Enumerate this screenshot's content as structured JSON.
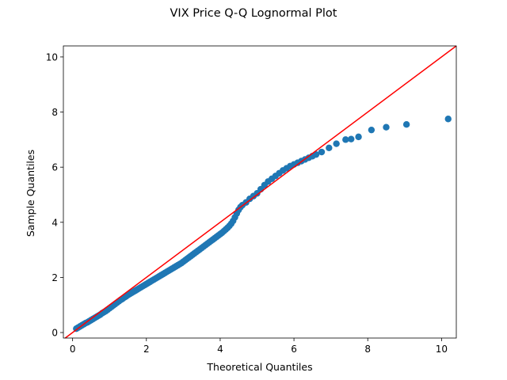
{
  "chart_data": {
    "type": "scatter",
    "title": "VIX Price Q-Q Lognormal Plot",
    "xlabel": "Theoretical Quantiles",
    "ylabel": "Sample Quantiles",
    "xlim": [
      -0.25,
      10.4
    ],
    "ylim": [
      -0.2,
      10.4
    ],
    "xticks": [
      0,
      2,
      4,
      6,
      8,
      10
    ],
    "yticks": [
      0,
      2,
      4,
      6,
      8,
      10
    ],
    "grid": false,
    "legend": "none",
    "reference_line": {
      "slope": 1,
      "intercept": 0,
      "color": "#ff0000"
    },
    "series": [
      {
        "color": "#1f77b4",
        "points": [
          [
            0.1,
            0.14
          ],
          [
            0.15,
            0.18
          ],
          [
            0.2,
            0.22
          ],
          [
            0.25,
            0.26
          ],
          [
            0.3,
            0.3
          ],
          [
            0.35,
            0.34
          ],
          [
            0.4,
            0.37
          ],
          [
            0.45,
            0.41
          ],
          [
            0.5,
            0.45
          ],
          [
            0.55,
            0.49
          ],
          [
            0.6,
            0.53
          ],
          [
            0.65,
            0.57
          ],
          [
            0.7,
            0.61
          ],
          [
            0.75,
            0.65
          ],
          [
            0.8,
            0.7
          ],
          [
            0.85,
            0.74
          ],
          [
            0.9,
            0.78
          ],
          [
            0.95,
            0.83
          ],
          [
            1.0,
            0.88
          ],
          [
            1.05,
            0.93
          ],
          [
            1.1,
            0.98
          ],
          [
            1.15,
            1.03
          ],
          [
            1.2,
            1.08
          ],
          [
            1.25,
            1.13
          ],
          [
            1.3,
            1.18
          ],
          [
            1.35,
            1.22
          ],
          [
            1.4,
            1.27
          ],
          [
            1.45,
            1.31
          ],
          [
            1.5,
            1.36
          ],
          [
            1.55,
            1.4
          ],
          [
            1.6,
            1.44
          ],
          [
            1.65,
            1.48
          ],
          [
            1.7,
            1.52
          ],
          [
            1.75,
            1.56
          ],
          [
            1.8,
            1.6
          ],
          [
            1.85,
            1.64
          ],
          [
            1.9,
            1.68
          ],
          [
            1.95,
            1.72
          ],
          [
            2.0,
            1.76
          ],
          [
            2.05,
            1.8
          ],
          [
            2.1,
            1.84
          ],
          [
            2.15,
            1.88
          ],
          [
            2.2,
            1.92
          ],
          [
            2.25,
            1.96
          ],
          [
            2.3,
            2.0
          ],
          [
            2.35,
            2.04
          ],
          [
            2.4,
            2.08
          ],
          [
            2.45,
            2.12
          ],
          [
            2.5,
            2.16
          ],
          [
            2.55,
            2.2
          ],
          [
            2.6,
            2.24
          ],
          [
            2.65,
            2.28
          ],
          [
            2.7,
            2.32
          ],
          [
            2.75,
            2.36
          ],
          [
            2.8,
            2.4
          ],
          [
            2.85,
            2.44
          ],
          [
            2.9,
            2.48
          ],
          [
            2.95,
            2.52
          ],
          [
            3.0,
            2.57
          ],
          [
            3.05,
            2.62
          ],
          [
            3.1,
            2.67
          ],
          [
            3.15,
            2.72
          ],
          [
            3.2,
            2.77
          ],
          [
            3.25,
            2.82
          ],
          [
            3.3,
            2.87
          ],
          [
            3.35,
            2.92
          ],
          [
            3.4,
            2.97
          ],
          [
            3.45,
            3.02
          ],
          [
            3.5,
            3.07
          ],
          [
            3.55,
            3.12
          ],
          [
            3.6,
            3.17
          ],
          [
            3.65,
            3.22
          ],
          [
            3.7,
            3.27
          ],
          [
            3.75,
            3.32
          ],
          [
            3.8,
            3.37
          ],
          [
            3.85,
            3.42
          ],
          [
            3.9,
            3.47
          ],
          [
            3.95,
            3.52
          ],
          [
            4.0,
            3.57
          ],
          [
            4.05,
            3.62
          ],
          [
            4.1,
            3.68
          ],
          [
            4.15,
            3.74
          ],
          [
            4.2,
            3.8
          ],
          [
            4.25,
            3.87
          ],
          [
            4.3,
            3.95
          ],
          [
            4.35,
            4.05
          ],
          [
            4.4,
            4.18
          ],
          [
            4.45,
            4.32
          ],
          [
            4.5,
            4.45
          ],
          [
            4.55,
            4.55
          ],
          [
            4.6,
            4.62
          ],
          [
            4.7,
            4.72
          ],
          [
            4.8,
            4.85
          ],
          [
            4.9,
            4.95
          ],
          [
            5.0,
            5.05
          ],
          [
            5.1,
            5.2
          ],
          [
            5.2,
            5.35
          ],
          [
            5.3,
            5.48
          ],
          [
            5.4,
            5.58
          ],
          [
            5.5,
            5.68
          ],
          [
            5.6,
            5.78
          ],
          [
            5.7,
            5.88
          ],
          [
            5.8,
            5.96
          ],
          [
            5.9,
            6.04
          ],
          [
            6.0,
            6.1
          ],
          [
            6.1,
            6.16
          ],
          [
            6.2,
            6.22
          ],
          [
            6.3,
            6.28
          ],
          [
            6.4,
            6.34
          ],
          [
            6.5,
            6.4
          ],
          [
            6.6,
            6.46
          ],
          [
            6.75,
            6.55
          ],
          [
            6.95,
            6.7
          ],
          [
            7.15,
            6.85
          ],
          [
            7.4,
            7.0
          ],
          [
            7.55,
            7.02
          ],
          [
            7.75,
            7.1
          ],
          [
            8.1,
            7.35
          ],
          [
            8.5,
            7.45
          ],
          [
            9.05,
            7.55
          ],
          [
            10.18,
            7.75
          ]
        ]
      }
    ]
  }
}
